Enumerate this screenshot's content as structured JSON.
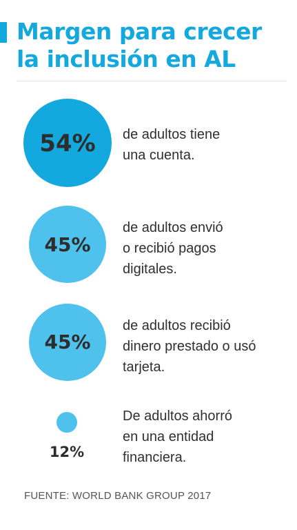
{
  "title": {
    "line1": "Margen para crecer",
    "line2": "la inclusión en AL"
  },
  "colors": {
    "accent": "#14a9de",
    "circle_large": "#14a9de",
    "circle_light": "#4ec1ec",
    "text": "#2f2f2f"
  },
  "stats": [
    {
      "value": "54%",
      "lines": [
        "de adultos tiene",
        "una cuenta."
      ]
    },
    {
      "value": "45%",
      "lines": [
        "de adultos envió",
        "o recibió pagos",
        "digitales."
      ]
    },
    {
      "value": "45%",
      "lines": [
        "de adultos recibió",
        "dinero prestado o usó",
        "tarjeta."
      ]
    },
    {
      "value": "12%",
      "lines": [
        "De adultos ahorró",
        "en una entidad",
        "financiera."
      ]
    }
  ],
  "source": "FUENTE: WORLD BANK GROUP 2017"
}
